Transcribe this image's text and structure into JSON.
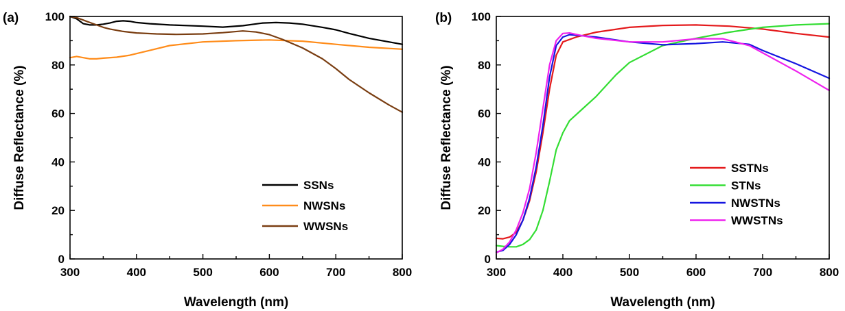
{
  "chart_data": [
    {
      "type": "line",
      "panel_label": "(a)",
      "xlabel": "Wavelength (nm)",
      "ylabel": "Diffuse Reflectance (%)",
      "xlim": [
        300,
        800
      ],
      "ylim": [
        0,
        100
      ],
      "xticks": [
        300,
        400,
        500,
        600,
        700,
        800
      ],
      "yticks": [
        0,
        20,
        40,
        60,
        80,
        100
      ],
      "grid": false,
      "legend_position": "bottom-right",
      "series": [
        {
          "name": "SSNs",
          "color": "#000000",
          "x": [
            300,
            310,
            320,
            330,
            340,
            350,
            360,
            370,
            380,
            390,
            400,
            420,
            450,
            500,
            530,
            560,
            590,
            610,
            630,
            650,
            680,
            700,
            720,
            750,
            780,
            800
          ],
          "y": [
            100,
            99,
            97,
            96.5,
            96.5,
            96.8,
            97.3,
            98,
            98.2,
            98,
            97.5,
            97,
            96.5,
            96,
            95.6,
            96.2,
            97.3,
            97.5,
            97.3,
            96.8,
            95.5,
            94.5,
            93,
            91,
            89.5,
            88.5
          ]
        },
        {
          "name": "NWSNs",
          "color": "#ff8c1a",
          "x": [
            300,
            310,
            320,
            330,
            340,
            350,
            370,
            390,
            420,
            450,
            500,
            550,
            600,
            650,
            700,
            750,
            800
          ],
          "y": [
            83,
            83.5,
            83,
            82.5,
            82.5,
            82.8,
            83.2,
            84,
            86,
            88,
            89.5,
            90,
            90.3,
            89.8,
            88.5,
            87.3,
            86.5
          ]
        },
        {
          "name": "WWSNs",
          "color": "#7a3e12",
          "x": [
            300,
            310,
            320,
            330,
            340,
            350,
            360,
            380,
            400,
            430,
            460,
            500,
            530,
            560,
            580,
            600,
            620,
            650,
            680,
            700,
            720,
            750,
            780,
            800
          ],
          "y": [
            100,
            99.5,
            98.5,
            97.5,
            96.5,
            95.5,
            94.8,
            93.8,
            93.2,
            92.8,
            92.6,
            92.8,
            93.3,
            94,
            93.6,
            92.5,
            90.5,
            87,
            82.5,
            78.5,
            74,
            68.5,
            63.5,
            60.5
          ]
        }
      ]
    },
    {
      "type": "line",
      "panel_label": "(b)",
      "xlabel": "Wavelength (nm)",
      "ylabel": "Diffuse Reflectance (%)",
      "xlim": [
        300,
        800
      ],
      "ylim": [
        0,
        100
      ],
      "xticks": [
        300,
        400,
        500,
        600,
        700,
        800
      ],
      "yticks": [
        0,
        20,
        40,
        60,
        80,
        100
      ],
      "grid": false,
      "legend_position": "bottom-right",
      "series": [
        {
          "name": "SSTNs",
          "color": "#e41a1c",
          "x": [
            300,
            310,
            320,
            330,
            340,
            350,
            360,
            370,
            380,
            390,
            400,
            420,
            450,
            500,
            550,
            600,
            650,
            700,
            750,
            800
          ],
          "y": [
            8.5,
            8.3,
            9,
            11,
            16,
            24,
            36,
            52,
            70,
            84,
            89.5,
            91.5,
            93.5,
            95.5,
            96.3,
            96.5,
            96,
            94.8,
            93,
            91.5
          ]
        },
        {
          "name": "STNs",
          "color": "#33dd33",
          "x": [
            300,
            310,
            320,
            330,
            340,
            350,
            360,
            370,
            380,
            390,
            400,
            410,
            430,
            450,
            480,
            500,
            550,
            600,
            650,
            700,
            750,
            800
          ],
          "y": [
            5.5,
            5.2,
            5,
            5,
            6,
            8,
            12,
            20,
            32,
            45,
            52,
            57,
            62,
            67,
            76,
            81,
            88,
            91,
            93.5,
            95.5,
            96.5,
            97
          ]
        },
        {
          "name": "NWSTNs",
          "color": "#1515e0",
          "x": [
            300,
            310,
            320,
            330,
            340,
            350,
            360,
            370,
            380,
            390,
            400,
            410,
            430,
            450,
            500,
            550,
            600,
            640,
            680,
            700,
            750,
            800
          ],
          "y": [
            2.8,
            3.5,
            6,
            10,
            16,
            25,
            38,
            55,
            75,
            88,
            91.5,
            92.5,
            92,
            91.5,
            89.5,
            88.3,
            88.8,
            89.5,
            88.5,
            86,
            80.5,
            74.5
          ]
        },
        {
          "name": "WWSTNs",
          "color": "#ee22ee",
          "x": [
            300,
            310,
            320,
            330,
            340,
            350,
            360,
            370,
            380,
            390,
            400,
            410,
            430,
            450,
            500,
            550,
            600,
            640,
            680,
            700,
            750,
            800
          ],
          "y": [
            2.5,
            4,
            7,
            12,
            19,
            29,
            44,
            62,
            80,
            90,
            93,
            93.2,
            92,
            91,
            89.5,
            89.5,
            90.8,
            90.8,
            88,
            85,
            77.5,
            69.5
          ]
        }
      ]
    }
  ]
}
